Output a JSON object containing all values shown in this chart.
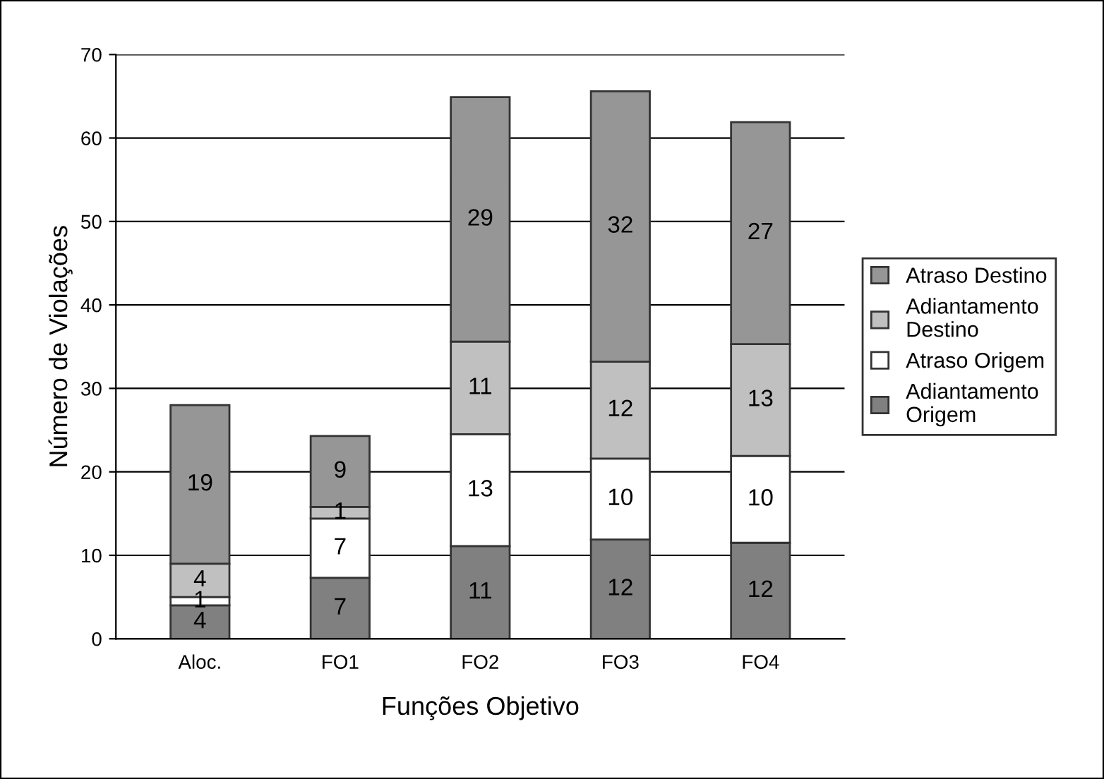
{
  "chart_data": {
    "type": "bar",
    "stacked": true,
    "xlabel": "Funções Objetivo",
    "ylabel": "Número de Violações",
    "categories": [
      "Aloc.",
      "FO1",
      "FO2",
      "FO3",
      "FO4"
    ],
    "series": [
      {
        "name": "Adiantamento Origem",
        "color": "#808080",
        "values": [
          4,
          7.3,
          11.1,
          11.9,
          11.5
        ],
        "value_labels": [
          "4",
          "7",
          "11",
          "12",
          "12"
        ]
      },
      {
        "name": "Atraso Origem",
        "color": "#ffffff",
        "values": [
          1,
          7.1,
          13.4,
          9.7,
          10.4
        ],
        "value_labels": [
          "1",
          "7",
          "13",
          "10",
          "10"
        ]
      },
      {
        "name": "Adiantamento Destino",
        "color": "#c0c0c0",
        "values": [
          4,
          1.4,
          11.1,
          11.6,
          13.4
        ],
        "value_labels": [
          "4",
          "1",
          "11",
          "12",
          "13"
        ]
      },
      {
        "name": "Atraso Destino",
        "color": "#969696",
        "values": [
          19,
          8.5,
          29.3,
          32.4,
          26.6
        ],
        "value_labels": [
          "19",
          "9",
          "29",
          "32",
          "27"
        ]
      }
    ],
    "ylim": [
      0,
      70
    ],
    "yticks": [
      0,
      10,
      20,
      30,
      40,
      50,
      60,
      70
    ],
    "grid": "y",
    "legend": "right"
  }
}
